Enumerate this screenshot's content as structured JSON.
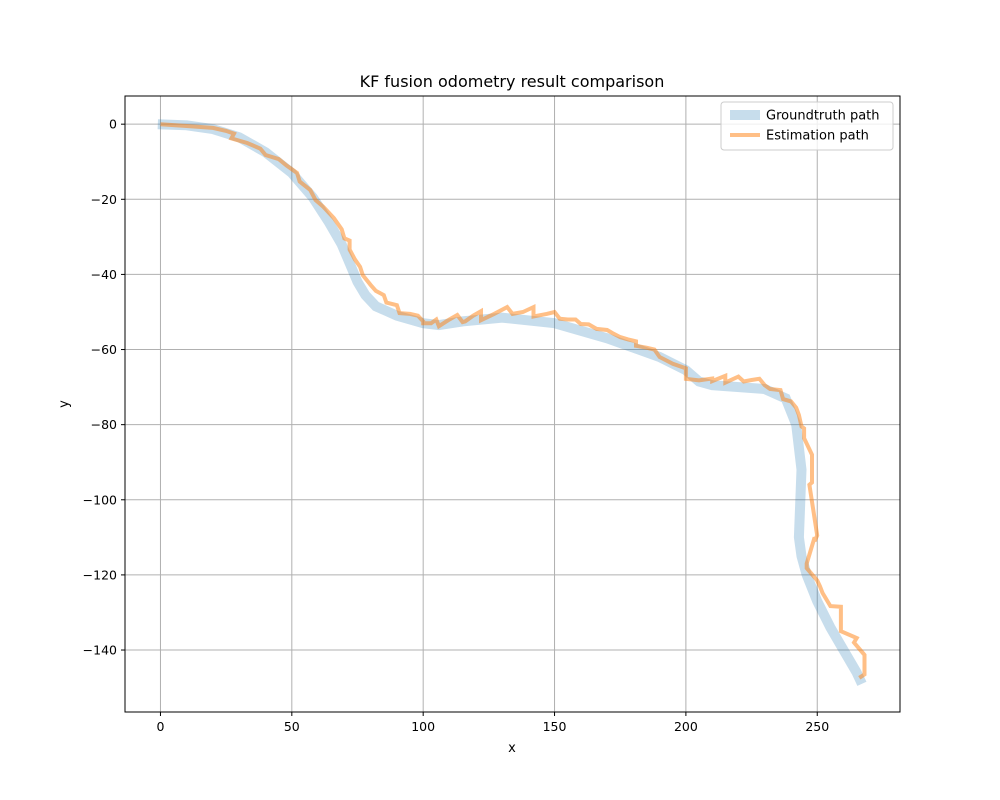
{
  "chart_data": {
    "type": "line",
    "title": "KF fusion odometry result comparison",
    "xlabel": "x",
    "ylabel": "y",
    "xlim": [
      -13.5,
      281.5
    ],
    "ylim": [
      -156.5,
      7.5
    ],
    "xticks": [
      0,
      50,
      100,
      150,
      200,
      250
    ],
    "yticks": [
      0,
      -20,
      -40,
      -60,
      -80,
      -100,
      -120,
      -140
    ],
    "grid": true,
    "legend": {
      "position": "top-right"
    },
    "series": [
      {
        "name": "Groundtruth path",
        "color": "#1f77b4",
        "opacity": 0.25,
        "style": "thick",
        "x": [
          -1,
          10,
          20,
          30,
          40,
          50,
          58,
          64,
          69,
          72,
          75,
          78,
          82,
          90,
          100,
          106,
          115,
          130,
          150,
          170,
          190,
          200,
          205,
          210,
          230,
          238,
          242,
          244,
          243,
          244,
          246,
          250,
          255,
          260,
          265,
          267
        ],
        "y": [
          0,
          -0.3,
          -1.3,
          -3.5,
          -7.5,
          -13,
          -19.5,
          -26,
          -32,
          -37,
          -42,
          -45.5,
          -48.5,
          -51,
          -53,
          -53.5,
          -52.5,
          -51.5,
          -53,
          -57,
          -62,
          -65.5,
          -68.5,
          -69.5,
          -70.5,
          -73,
          -80,
          -92,
          -110,
          -115,
          -120,
          -127,
          -134,
          -140,
          -146,
          -149
        ]
      },
      {
        "name": "Estimation path",
        "color": "#ff7f0e",
        "opacity": 0.5,
        "style": "thin",
        "x": [
          0,
          10,
          20,
          25,
          28,
          27,
          33,
          38,
          40,
          45,
          48,
          52,
          53,
          57,
          59,
          62,
          66,
          69,
          70,
          72,
          72,
          74,
          76,
          77,
          80,
          82,
          85,
          86,
          90,
          91,
          95,
          98,
          100,
          100,
          103,
          105,
          106,
          110,
          113,
          115,
          116,
          119,
          122,
          122,
          127,
          132,
          134,
          138,
          142,
          142,
          147,
          150,
          152,
          155,
          158,
          160,
          163,
          166,
          170,
          172,
          175,
          178,
          181,
          181,
          185,
          188,
          190,
          195,
          200,
          200,
          205,
          210,
          210,
          215,
          215,
          220,
          222,
          225,
          228,
          230,
          232,
          236,
          237,
          240,
          242,
          243,
          244,
          245,
          245,
          248,
          248,
          247,
          250,
          249,
          249,
          246,
          246,
          250,
          251,
          252,
          255,
          259,
          259,
          259,
          265,
          264,
          268,
          268,
          266
        ],
        "y": [
          0,
          -0.5,
          -1,
          -1.8,
          -2.5,
          -3.8,
          -5,
          -6.5,
          -8.2,
          -9.3,
          -11,
          -13,
          -15.3,
          -17.5,
          -20.2,
          -22,
          -25,
          -28,
          -30.4,
          -31,
          -33.4,
          -36,
          -38,
          -40.2,
          -42.8,
          -44.4,
          -45.5,
          -47.5,
          -48.2,
          -50.3,
          -50.5,
          -51,
          -52.5,
          -53,
          -53,
          -52,
          -53.8,
          -52,
          -50.8,
          -52.7,
          -52.5,
          -51,
          -49.8,
          -52.2,
          -50.5,
          -48.7,
          -50.5,
          -50,
          -48.7,
          -51.2,
          -50.5,
          -50,
          -51.8,
          -52,
          -52,
          -53.2,
          -53.3,
          -54.5,
          -54.8,
          -55.6,
          -56.7,
          -57.3,
          -57.8,
          -59,
          -59.5,
          -60,
          -62,
          -63.8,
          -65,
          -67.8,
          -68.2,
          -67.7,
          -68.4,
          -67,
          -68.8,
          -67.2,
          -68.5,
          -68.1,
          -67.8,
          -69.5,
          -70.5,
          -70.8,
          -73.2,
          -73.8,
          -75.5,
          -77.4,
          -80.5,
          -81,
          -83.6,
          -88,
          -95.4,
          -96,
          -109.5,
          -111,
          -110,
          -117,
          -118.2,
          -121.5,
          -123,
          -124.8,
          -128.3,
          -128.5,
          -131.3,
          -135,
          -136.8,
          -138,
          -141.3,
          -146.5,
          -147.4
        ]
      }
    ]
  }
}
